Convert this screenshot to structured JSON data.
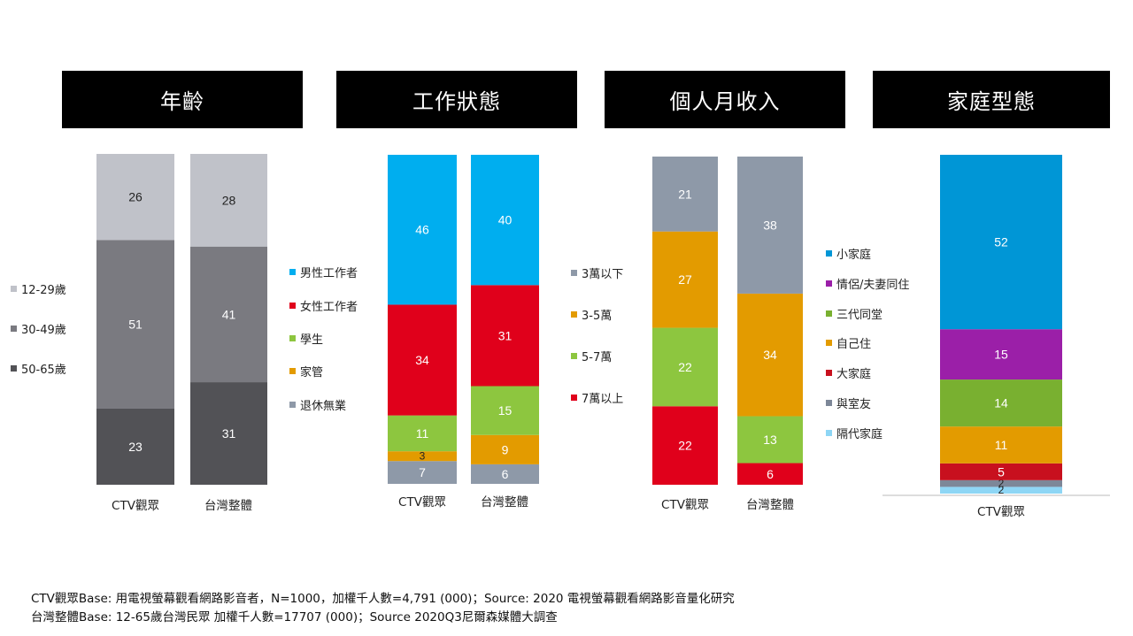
{
  "colors": {
    "age_12_29": "#c0c2c9",
    "age_30_49": "#7a7a80",
    "age_50_65": "#525256",
    "work_male": "#00aeef",
    "work_female": "#e0001b",
    "work_student": "#8dc63f",
    "work_home": "#e39b00",
    "work_retired": "#8e99a8",
    "inc_low": "#8e99a8",
    "inc_35": "#e39b00",
    "inc_57": "#8dc63f",
    "inc_7up": "#e0001b",
    "fam_small": "#0096d6",
    "fam_couple": "#9b1fa8",
    "fam_three": "#79b030",
    "fam_alone": "#e39b00",
    "fam_big": "#c8101e",
    "fam_room": "#7d8798",
    "fam_skip": "#8ed6f5"
  },
  "chart_data": [
    {
      "type": "bar",
      "stacked": true,
      "title": "年齡",
      "categories": [
        "CTV觀眾",
        "台灣整體"
      ],
      "series": [
        {
          "name": "50-65歲",
          "values": [
            23,
            31
          ],
          "color_key": "age_50_65"
        },
        {
          "name": "30-49歲",
          "values": [
            51,
            41
          ],
          "color_key": "age_30_49"
        },
        {
          "name": "12-29歲",
          "values": [
            26,
            28
          ],
          "color_key": "age_12_29"
        }
      ],
      "legend": [
        "12-29歲",
        "30-49歲",
        "50-65歲"
      ]
    },
    {
      "type": "bar",
      "stacked": true,
      "title": "工作狀態",
      "categories": [
        "CTV觀眾",
        "台灣整體"
      ],
      "series": [
        {
          "name": "退休無業",
          "values": [
            7,
            6
          ],
          "color_key": "work_retired"
        },
        {
          "name": "家管",
          "values": [
            3,
            9
          ],
          "color_key": "work_home"
        },
        {
          "name": "學生",
          "values": [
            11,
            15
          ],
          "color_key": "work_student"
        },
        {
          "name": "女性工作者",
          "values": [
            34,
            31
          ],
          "color_key": "work_female"
        },
        {
          "name": "男性工作者",
          "values": [
            46,
            40
          ],
          "color_key": "work_male"
        }
      ],
      "legend": [
        "男性工作者",
        "女性工作者",
        "學生",
        "家管",
        "退休無業"
      ]
    },
    {
      "type": "bar",
      "stacked": true,
      "title": "個人月收入",
      "categories": [
        "CTV觀眾",
        "台灣整體"
      ],
      "series": [
        {
          "name": "7萬以上",
          "values": [
            22,
            6
          ],
          "color_key": "inc_7up"
        },
        {
          "name": "5-7萬",
          "values": [
            22,
            13
          ],
          "color_key": "inc_57"
        },
        {
          "name": "3-5萬",
          "values": [
            27,
            34
          ],
          "color_key": "inc_35"
        },
        {
          "name": "3萬以下",
          "values": [
            21,
            38
          ],
          "color_key": "inc_low"
        }
      ],
      "legend": [
        "3萬以下",
        "3-5萬",
        "5-7萬",
        "7萬以上"
      ]
    },
    {
      "type": "bar",
      "stacked": true,
      "title": "家庭型態",
      "categories": [
        "CTV觀眾"
      ],
      "series": [
        {
          "name": "隔代家庭",
          "values": [
            2
          ],
          "color_key": "fam_skip"
        },
        {
          "name": "與室友",
          "values": [
            2
          ],
          "color_key": "fam_room"
        },
        {
          "name": "大家庭",
          "values": [
            5
          ],
          "color_key": "fam_big"
        },
        {
          "name": "自己住",
          "values": [
            11
          ],
          "color_key": "fam_alone"
        },
        {
          "name": "三代同堂",
          "values": [
            14
          ],
          "color_key": "fam_three"
        },
        {
          "name": "情侶/夫妻同住",
          "values": [
            15
          ],
          "color_key": "fam_couple"
        },
        {
          "name": "小家庭",
          "values": [
            52
          ],
          "color_key": "fam_small"
        }
      ],
      "legend": [
        "小家庭",
        "情侶/夫妻同住",
        "三代同堂",
        "自己住",
        "大家庭",
        "與室友",
        "隔代家庭"
      ]
    }
  ],
  "footer": {
    "line1": "CTV觀眾Base: 用電視螢幕觀看網路影音者，N=1000，加權千人數=4,791 (000)；Source: 2020 電視螢幕觀看網路影音量化研究",
    "line2": "台灣整體Base: 12-65歲台灣民眾 加權千人數=17707 (000)；Source 2020Q3尼爾森媒體大調查"
  }
}
